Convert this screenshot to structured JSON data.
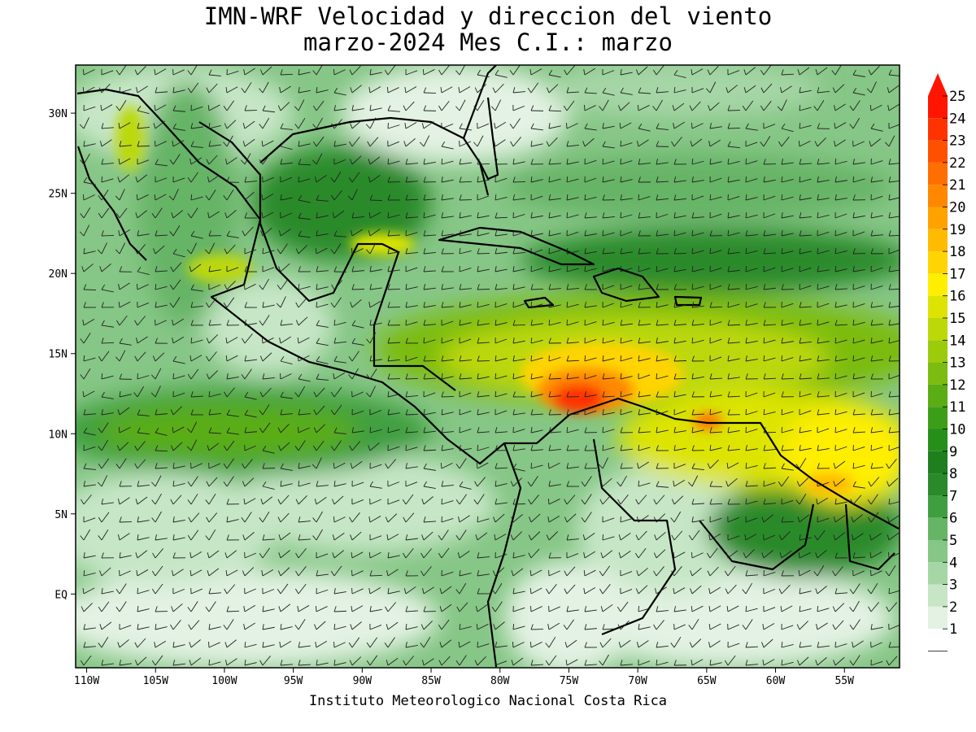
{
  "title": {
    "line1": "IMN-WRF Velocidad y direccion del viento",
    "line2": "marzo-2024 Mes C.I.: marzo"
  },
  "footer": "Instituto Meteorologico Nacional Costa Rica",
  "axes": {
    "x_ticks": [
      "110W",
      "105W",
      "100W",
      "95W",
      "90W",
      "85W",
      "80W",
      "75W",
      "70W",
      "65W",
      "60W",
      "55W"
    ],
    "x_values": [
      -110,
      -105,
      -100,
      -95,
      -90,
      -85,
      -80,
      -75,
      -70,
      -65,
      -60,
      -55
    ],
    "y_ticks": [
      "EQ",
      "5N",
      "10N",
      "15N",
      "20N",
      "25N",
      "30N"
    ],
    "y_values": [
      0,
      5,
      10,
      15,
      20,
      25,
      30
    ],
    "lon_range": [
      -110.8,
      -51
    ],
    "lat_range": [
      -4.6,
      33
    ]
  },
  "colorbar": {
    "labels": [
      "1",
      "2",
      "3",
      "4",
      "5",
      "6",
      "7",
      "8",
      "9",
      "10",
      "11",
      "12",
      "13",
      "14",
      "15",
      "16",
      "17",
      "18",
      "19",
      "20",
      "21",
      "22",
      "23",
      "24",
      "25"
    ],
    "colors": [
      "#ffffff",
      "#e3f2e3",
      "#c6e6c6",
      "#a6d6a6",
      "#86c686",
      "#66b466",
      "#3f9f3f",
      "#2a8a2a",
      "#1f7f1f",
      "#268f1a",
      "#3c9e18",
      "#5aad14",
      "#7cbc10",
      "#9ccb0c",
      "#bcd808",
      "#dde404",
      "#ffee00",
      "#ffd400",
      "#ffbb00",
      "#ffa200",
      "#ff8800",
      "#ff6e00",
      "#ff5000",
      "#ff3300",
      "#ff1500"
    ],
    "extend": "max",
    "units": ""
  },
  "map": {
    "region": "Central America, Caribbean and northern South America",
    "field": "wind speed with wind barbs",
    "max_region": "Caribbean north of Colombia/Venezuela",
    "max_value": 24
  }
}
